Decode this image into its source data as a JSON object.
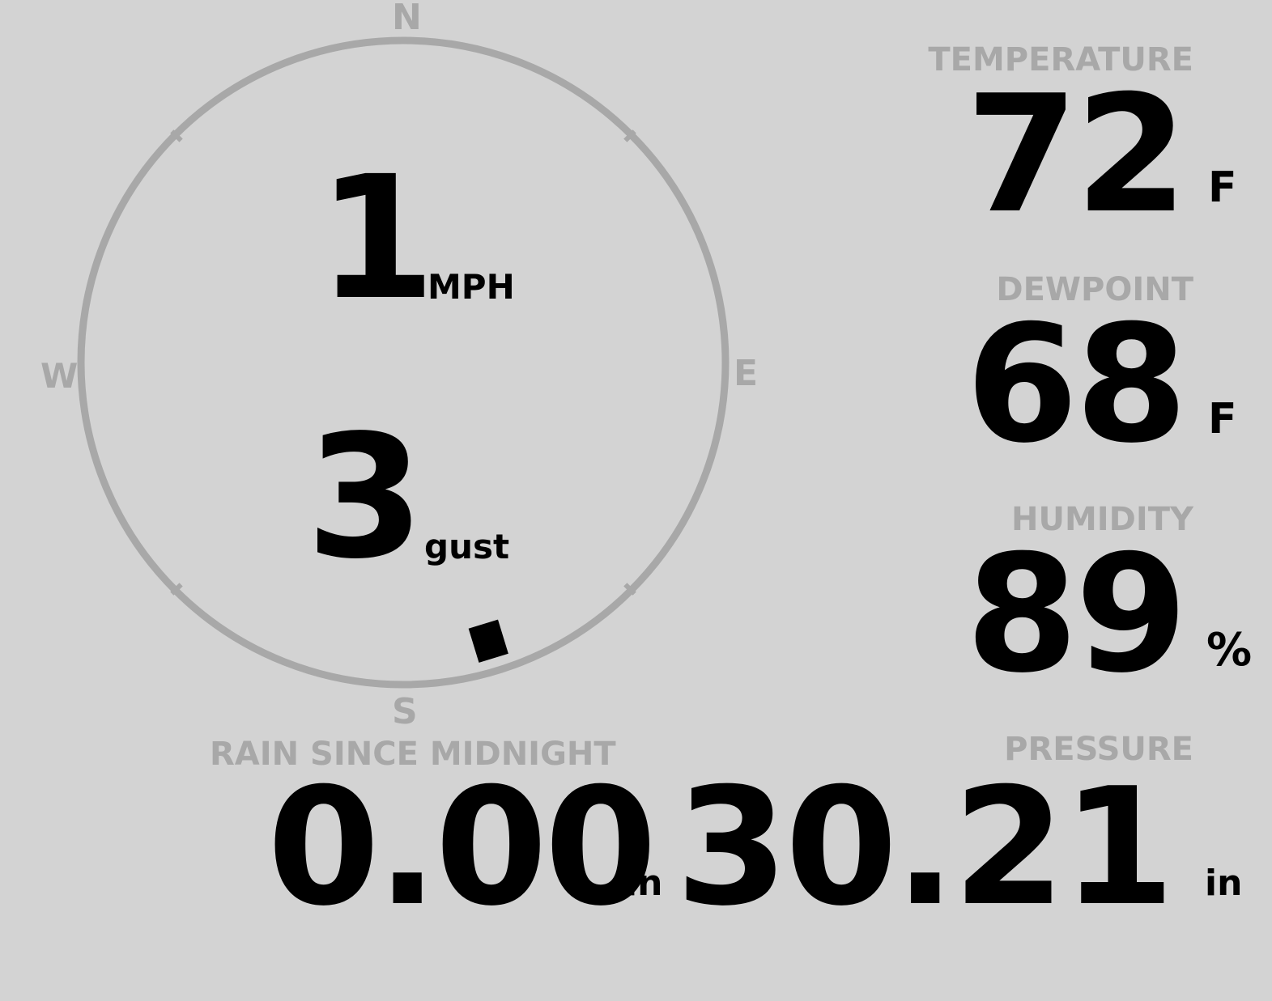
{
  "wind": {
    "speed": "1",
    "speed_unit": "MPH",
    "gust": "3",
    "gust_unit": "gust",
    "direction_deg": 163,
    "compass": {
      "n": "N",
      "e": "E",
      "s": "S",
      "w": "W"
    }
  },
  "temperature": {
    "label": "TEMPERATURE",
    "value": "72",
    "unit": "F"
  },
  "dewpoint": {
    "label": "DEWPOINT",
    "value": "68",
    "unit": "F"
  },
  "humidity": {
    "label": "HUMIDITY",
    "value": "89",
    "unit": "%"
  },
  "rain": {
    "label": "RAIN SINCE MIDNIGHT",
    "value": "0.00",
    "unit": "in"
  },
  "pressure": {
    "label": "PRESSURE",
    "value": "30.21",
    "unit": "in"
  },
  "colors": {
    "background": "#d3d3d3",
    "label": "#a8a8a8",
    "value": "#000000",
    "compass_ring": "#a8a8a8"
  }
}
